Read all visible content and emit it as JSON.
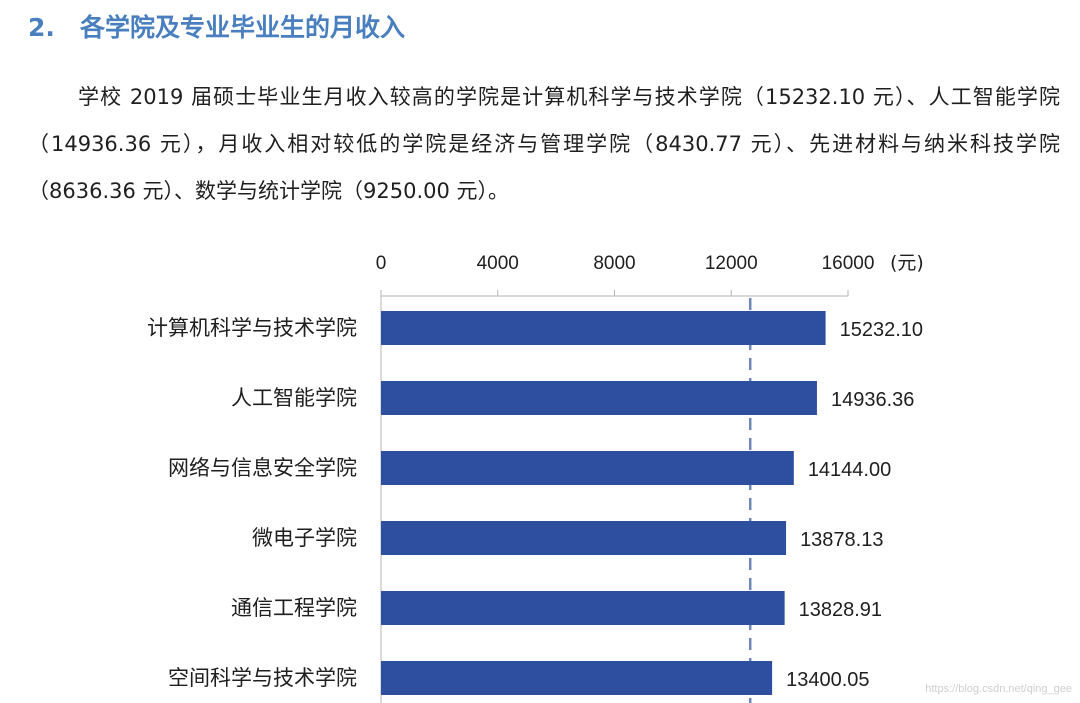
{
  "section": {
    "number": "2.",
    "title": "各学院及专业毕业生的月收入"
  },
  "paragraph": "学校 2019 届硕士毕业生月收入较高的学院是计算机科学与技术学院（15232.10 元）、人工智能学院（14936.36 元），月收入相对较低的学院是经济与管理学院（8430.77 元）、先进材料与纳米科技学院（8636.36 元）、数学与统计学院（9250.00 元）。",
  "watermark": "https://blog.csdn.net/qing_gee",
  "chart_data": {
    "type": "bar",
    "orientation": "horizontal",
    "axis_position": "top",
    "unit_label": "(元)",
    "xlim": [
      0,
      16000
    ],
    "ticks": [
      0,
      4000,
      8000,
      12000,
      16000
    ],
    "reference_line": {
      "value": 12650,
      "style": "dashed"
    },
    "bar_color": "#2e4fa0",
    "categories": [
      "计算机科学与技术学院",
      "人工智能学院",
      "网络与信息安全学院",
      "微电子学院",
      "通信工程学院",
      "空间科学与技术学院"
    ],
    "values": [
      15232.1,
      14936.36,
      14144.0,
      13878.13,
      13828.91,
      13400.05
    ],
    "value_labels": [
      "15232.10",
      "14936.36",
      "14144.00",
      "13878.13",
      "13828.91",
      "13400.05"
    ]
  }
}
